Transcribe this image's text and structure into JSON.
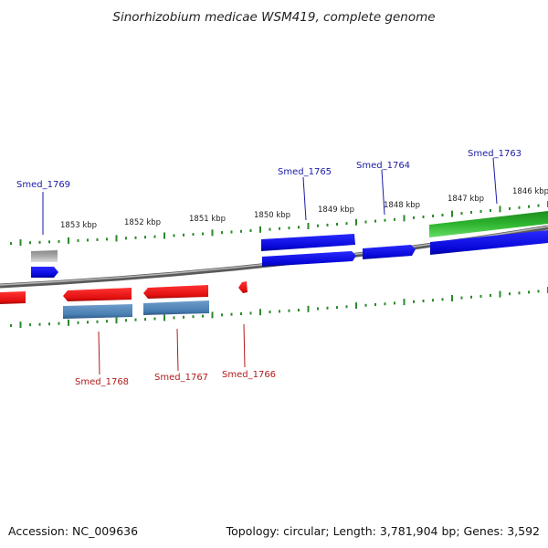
{
  "title": "Sinorhizobium medicae WSM419, complete genome",
  "footer": {
    "accession": "Accession: NC_009636",
    "summary": "Topology: circular; Length: 3,781,904 bp; Genes: 3,592"
  },
  "colors": {
    "forward": "#1010dd",
    "reverse": "#ee1111",
    "cds_blue": "#4a7fb3",
    "rna_green": "#33aa33",
    "grey": "#aaaaaa",
    "backbone": "#777777",
    "ticks": "#2a8a2a",
    "label_blue": "#1a1aa6",
    "label_red": "#b31a1a"
  },
  "ticks": [
    {
      "label": "1853 kbp"
    },
    {
      "label": "1852 kbp"
    },
    {
      "label": "1851 kbp"
    },
    {
      "label": "1850 kbp"
    },
    {
      "label": "1849 kbp"
    },
    {
      "label": "1848 kbp"
    },
    {
      "label": "1847 kbp"
    },
    {
      "label": "1846 kbp"
    }
  ],
  "genes": [
    {
      "id": "Smed_1769",
      "strand": "forward"
    },
    {
      "id": "Smed_1765",
      "strand": "forward"
    },
    {
      "id": "Smed_1764",
      "strand": "forward"
    },
    {
      "id": "Smed_1763",
      "strand": "forward"
    },
    {
      "id": "Smed_1768",
      "strand": "reverse"
    },
    {
      "id": "Smed_1767",
      "strand": "reverse"
    },
    {
      "id": "Smed_1766",
      "strand": "reverse"
    }
  ]
}
